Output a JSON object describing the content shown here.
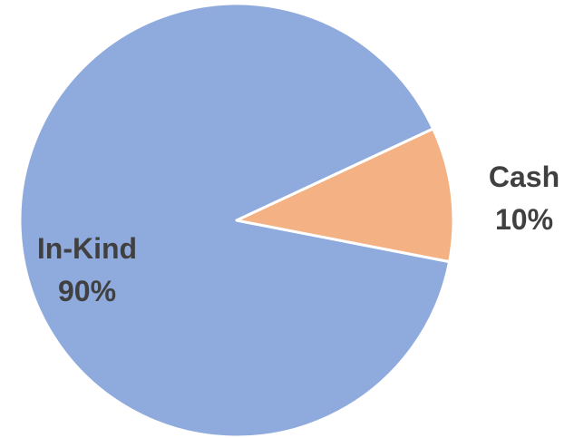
{
  "chart_data": {
    "type": "pie",
    "title": "",
    "slices": [
      {
        "label": "In-Kind",
        "value": 90,
        "display": "90%",
        "color": "#8FAADC"
      },
      {
        "label": "Cash",
        "value": 10,
        "display": "10%",
        "color": "#F4B183"
      }
    ],
    "start_angle_deg": -25,
    "direction": "counterclockwise",
    "label_color": "#404040",
    "slice_border_color": "#FFFFFF"
  }
}
